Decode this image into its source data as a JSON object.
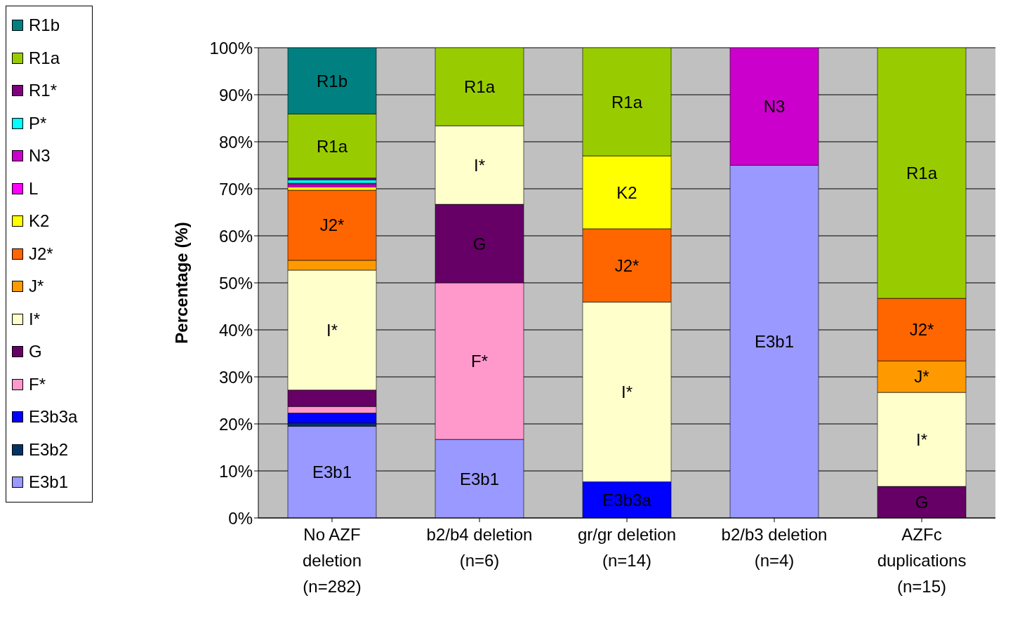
{
  "chart_data": {
    "type": "bar",
    "stacked": true,
    "ylabel": "Percentage (%)",
    "categories": [
      "No AZF deletion (n=282)",
      "b2/b4 deletion (n=6)",
      "gr/gr deletion (n=14)",
      "b2/b3 deletion (n=4)",
      "AZFc duplications (n=15)"
    ],
    "series": [
      {
        "name": "E3b1",
        "color": "#9999ff",
        "values": [
          19.5,
          16.7,
          null,
          75,
          null
        ]
      },
      {
        "name": "E3b2",
        "color": "#003366",
        "values": [
          0.7,
          null,
          null,
          null,
          null
        ]
      },
      {
        "name": "E3b3a",
        "color": "#0000ff",
        "values": [
          2.1,
          null,
          7.7,
          null,
          null
        ]
      },
      {
        "name": "F*",
        "color": "#ff99cc",
        "values": [
          1.4,
          33.3,
          null,
          null,
          null
        ]
      },
      {
        "name": "G",
        "color": "#660066",
        "values": [
          3.5,
          16.7,
          null,
          null,
          6.7
        ]
      },
      {
        "name": "I*",
        "color": "#ffffcc",
        "values": [
          25.5,
          16.7,
          38.2,
          null,
          20
        ]
      },
      {
        "name": "J*",
        "color": "#ff9900",
        "values": [
          2.1,
          null,
          null,
          null,
          6.7
        ]
      },
      {
        "name": "J2*",
        "color": "#ff6600",
        "values": [
          14.9,
          null,
          15.6,
          null,
          13.3
        ]
      },
      {
        "name": "K2",
        "color": "#ffff00",
        "values": [
          0.7,
          null,
          15.5,
          null,
          null
        ]
      },
      {
        "name": "L",
        "color": "#ff00ff",
        "values": [
          0.4,
          null,
          null,
          null,
          null
        ]
      },
      {
        "name": "N3",
        "color": "#cc00cc",
        "values": [
          0.4,
          null,
          null,
          25,
          null
        ]
      },
      {
        "name": "P*",
        "color": "#00ffff",
        "values": [
          0.7,
          null,
          null,
          null,
          null
        ]
      },
      {
        "name": "R1*",
        "color": "#800080",
        "values": [
          0.4,
          null,
          null,
          null,
          null
        ]
      },
      {
        "name": "R1a",
        "color": "#99cc00",
        "values": [
          13.6,
          16.7,
          23,
          null,
          53.3
        ]
      },
      {
        "name": "R1b",
        "color": "#008080",
        "values": [
          14.2,
          null,
          null,
          null,
          null
        ]
      }
    ],
    "ylim": [
      0,
      100
    ],
    "yticks": [
      {
        "value": 0,
        "label": "0%"
      },
      {
        "value": 10,
        "label": "10%"
      },
      {
        "value": 20,
        "label": "20%"
      },
      {
        "value": 30,
        "label": "30%"
      },
      {
        "value": 40,
        "label": "40%"
      },
      {
        "value": 50,
        "label": "50%"
      },
      {
        "value": 60,
        "label": "60%"
      },
      {
        "value": 70,
        "label": "70%"
      },
      {
        "value": 80,
        "label": "80%"
      },
      {
        "value": 90,
        "label": "90%"
      },
      {
        "value": 100,
        "label": "100%"
      }
    ],
    "grid": "y",
    "legend": "left"
  }
}
